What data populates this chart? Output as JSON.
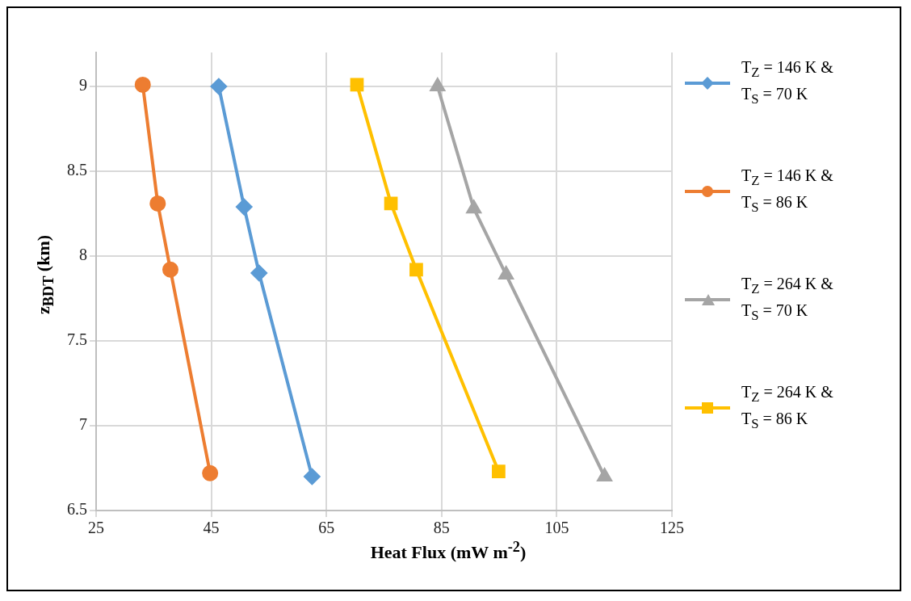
{
  "chart_data": {
    "type": "line",
    "xlabel": "Heat Flux (mW m$^{-2}$)",
    "ylabel": "z$_{BDT}$ (km)",
    "xlim": [
      25,
      125
    ],
    "xticks": [
      25,
      45,
      65,
      85,
      105,
      125
    ],
    "ylim": [
      6.5,
      9.2
    ],
    "yticks": [
      6.5,
      7,
      7.5,
      8,
      8.5,
      9
    ],
    "grid": true,
    "legend": "right",
    "series": [
      {
        "name": "T$_{Z}$ = 146 K & T$_{S}$ = 70 K",
        "color": "#5b9bd5",
        "marker": "diamond",
        "x": [
          46.3,
          50.7,
          53.3,
          62.5
        ],
        "values": [
          9.0,
          8.29,
          7.9,
          6.7
        ]
      },
      {
        "name": "T$_{Z}$ = 146 K & T$_{S}$ = 86 K",
        "color": "#ed7d31",
        "marker": "circle",
        "x": [
          33.1,
          35.7,
          37.9,
          44.8
        ],
        "values": [
          9.01,
          8.31,
          7.92,
          6.72
        ]
      },
      {
        "name": "T$_{Z}$ = 264 K & T$_{S}$ = 70 K",
        "color": "#a5a5a5",
        "marker": "triangle",
        "x": [
          84.3,
          90.6,
          96.2,
          113.3
        ],
        "values": [
          9.0,
          8.28,
          7.89,
          6.7
        ]
      },
      {
        "name": "T$_{Z}$ = 264 K & T$_{S}$ = 86 K",
        "color": "#ffc000",
        "marker": "square",
        "x": [
          70.3,
          76.2,
          80.6,
          94.9
        ],
        "values": [
          9.01,
          8.31,
          7.92,
          6.73
        ]
      }
    ]
  }
}
